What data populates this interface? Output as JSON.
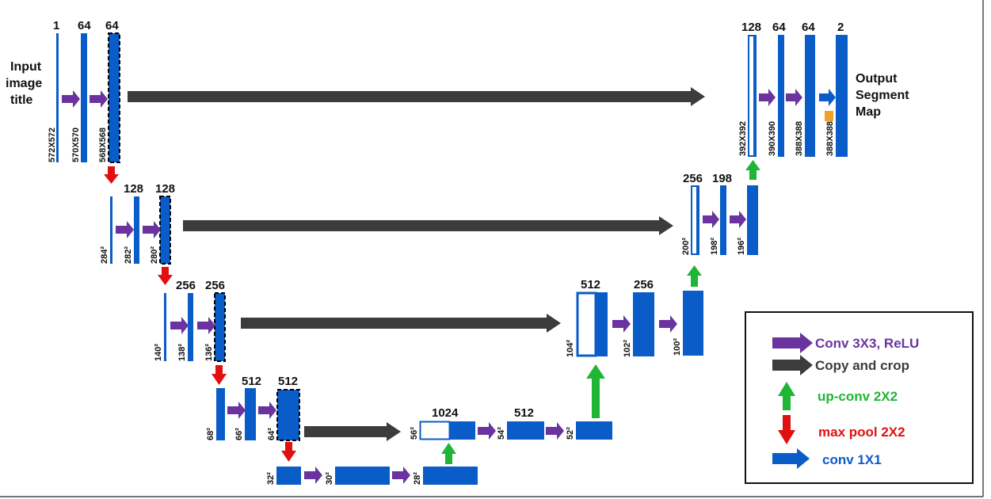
{
  "colors": {
    "blue": "#0a5cc8",
    "purple": "#6a33a0",
    "dark": "#3c3c3c",
    "green": "#1fb535",
    "red": "#e01010",
    "orange": "#f1a12a"
  },
  "input_label": [
    "Input",
    "image",
    "title"
  ],
  "output_label": [
    "Output",
    "Segment",
    "Map"
  ],
  "channels": {
    "l1": [
      "1",
      "64",
      "64"
    ],
    "l2": [
      "128",
      "128"
    ],
    "l3": [
      "256",
      "256"
    ],
    "l4": [
      "512",
      "512"
    ],
    "bottom": [
      "1024"
    ],
    "r4": [
      "512"
    ],
    "r3": [
      "512",
      "256"
    ],
    "r2": [
      "256",
      "198"
    ],
    "r1": [
      "128",
      "64",
      "64",
      "2"
    ]
  },
  "sizes": {
    "l1": [
      "572X572",
      "570X570",
      "568X568"
    ],
    "l2": [
      "284²",
      "282²",
      "280²"
    ],
    "l3": [
      "140²",
      "138²",
      "136²"
    ],
    "l4": [
      "68²",
      "66²",
      "64²"
    ],
    "bottom": [
      "32²",
      "30²",
      "28²"
    ],
    "r4": [
      "56²",
      "54²",
      "52²"
    ],
    "r3": [
      "104²",
      "102²",
      "100²"
    ],
    "r2": [
      "200²",
      "198²",
      "196²"
    ],
    "r1": [
      "392X392",
      "390X390",
      "388X388",
      "388X388"
    ]
  },
  "legend": [
    {
      "label": "Conv 3X3, ReLU",
      "icon": "purple-right-arrow",
      "color": "#6a33a0"
    },
    {
      "label": "Copy and crop",
      "icon": "dark-right-arrow",
      "color": "#3c3c3c"
    },
    {
      "label": "up-conv 2X2",
      "icon": "green-up-arrow",
      "color": "#1fb535"
    },
    {
      "label": "max pool 2X2",
      "icon": "red-down-arrow",
      "color": "#e01010"
    },
    {
      "label": "conv 1X1",
      "icon": "blue-right-arrow",
      "color": "#0a5cc8"
    }
  ]
}
